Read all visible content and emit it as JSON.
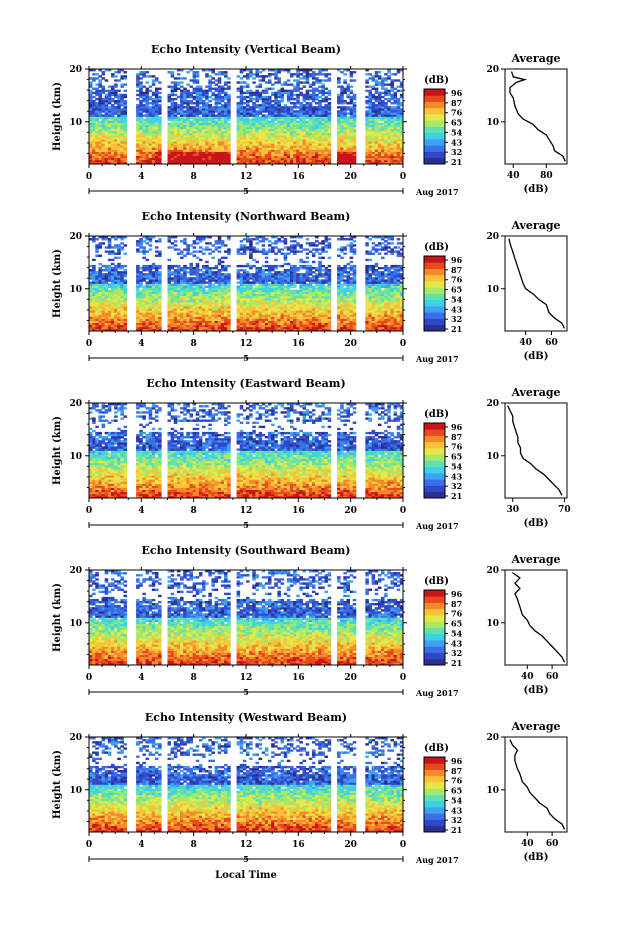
{
  "colors": {
    "colormap": [
      "#2b2f8f",
      "#3048c8",
      "#3a6fe8",
      "#3ea2f2",
      "#3dd0e6",
      "#5fe2b0",
      "#a8e868",
      "#e6e84a",
      "#f6c23a",
      "#f58a2a",
      "#e84a1e",
      "#c8141a"
    ],
    "axis": "#000000",
    "profile_line": "#000000"
  },
  "footer": {
    "xlabel": "Local Time"
  },
  "chart_data": [
    {
      "type": "heatmap",
      "title": "Echo Intensity (Vertical Beam)",
      "ylabel": "Height (km)",
      "xticks": [
        "0",
        "4",
        "8",
        "12",
        "16",
        "20",
        "0"
      ],
      "xlim": [
        0,
        24
      ],
      "ylim": [
        2,
        20
      ],
      "yticks": [
        "10",
        "20"
      ],
      "date_marker": "5",
      "date_label": "Aug 2017",
      "gaps": [
        [
          3.0,
          3.6
        ],
        [
          5.5,
          6.0
        ],
        [
          10.9,
          11.3
        ],
        [
          18.6,
          18.9
        ],
        [
          20.3,
          21.1
        ]
      ],
      "colorbar": {
        "unit": "(dB)",
        "ticks": [
          "96",
          "87",
          "76",
          "65",
          "54",
          "43",
          "32",
          "21"
        ]
      },
      "profile": {
        "title": "Average",
        "xlabel": "(dB)",
        "xticks": [
          "40",
          "80"
        ],
        "xlim": [
          30,
          105
        ],
        "points": [
          [
            103,
            2.5
          ],
          [
            100,
            3.5
          ],
          [
            90,
            4.5
          ],
          [
            88,
            5.5
          ],
          [
            84,
            6.5
          ],
          [
            80,
            7.5
          ],
          [
            70,
            8.5
          ],
          [
            64,
            9.5
          ],
          [
            52,
            10.5
          ],
          [
            46,
            11.5
          ],
          [
            42,
            13
          ],
          [
            40,
            14.5
          ],
          [
            36,
            15.5
          ],
          [
            36,
            16.5
          ],
          [
            44,
            17.5
          ],
          [
            54,
            18
          ],
          [
            40,
            18.5
          ],
          [
            38,
            19.5
          ]
        ]
      }
    },
    {
      "type": "heatmap",
      "title": "Echo Intensity (Northward Beam)",
      "ylabel": "Height (km)",
      "xticks": [
        "0",
        "4",
        "8",
        "12",
        "16",
        "20",
        "0"
      ],
      "xlim": [
        0,
        24
      ],
      "ylim": [
        2,
        20
      ],
      "yticks": [
        "10",
        "20"
      ],
      "date_marker": "5",
      "date_label": "Aug 2017",
      "gaps": [
        [
          3.0,
          3.6
        ],
        [
          5.5,
          6.0
        ],
        [
          10.9,
          11.3
        ],
        [
          18.6,
          18.9
        ],
        [
          20.3,
          21.1
        ]
      ],
      "colorbar": {
        "unit": "(dB)",
        "ticks": [
          "96",
          "87",
          "76",
          "65",
          "54",
          "43",
          "32",
          "21"
        ]
      },
      "profile": {
        "title": "Average",
        "xlabel": "(dB)",
        "xticks": [
          "40",
          "60"
        ],
        "xlim": [
          24,
          72
        ],
        "points": [
          [
            70,
            2.5
          ],
          [
            68,
            3.5
          ],
          [
            62,
            4.5
          ],
          [
            58,
            5.5
          ],
          [
            56,
            7
          ],
          [
            50,
            8
          ],
          [
            46,
            9
          ],
          [
            40,
            10
          ],
          [
            38,
            11
          ],
          [
            36,
            12.5
          ],
          [
            34,
            14
          ],
          [
            32,
            15.5
          ],
          [
            30,
            17
          ],
          [
            28,
            18.5
          ],
          [
            27,
            19.5
          ]
        ]
      }
    },
    {
      "type": "heatmap",
      "title": "Echo Intensity (Eastward Beam)",
      "ylabel": "Height (km)",
      "xticks": [
        "0",
        "4",
        "8",
        "12",
        "16",
        "20",
        "0"
      ],
      "xlim": [
        0,
        24
      ],
      "ylim": [
        2,
        20
      ],
      "yticks": [
        "10",
        "20"
      ],
      "date_marker": "5",
      "date_label": "Aug 2017",
      "gaps": [
        [
          3.0,
          3.6
        ],
        [
          5.5,
          6.0
        ],
        [
          10.9,
          11.3
        ],
        [
          18.6,
          18.9
        ],
        [
          20.3,
          21.1
        ]
      ],
      "colorbar": {
        "unit": "(dB)",
        "ticks": [
          "96",
          "87",
          "76",
          "65",
          "54",
          "43",
          "32",
          "21"
        ]
      },
      "profile": {
        "title": "Average",
        "xlabel": "(dB)",
        "xticks": [
          "30",
          "70"
        ],
        "xlim": [
          24,
          72
        ],
        "points": [
          [
            68,
            2.5
          ],
          [
            66,
            3.5
          ],
          [
            62,
            4.5
          ],
          [
            58,
            5.5
          ],
          [
            54,
            6.5
          ],
          [
            48,
            7.5
          ],
          [
            44,
            8.5
          ],
          [
            38,
            9.5
          ],
          [
            36,
            10.5
          ],
          [
            36,
            11.5
          ],
          [
            34,
            12.5
          ],
          [
            34,
            13.5
          ],
          [
            32,
            15
          ],
          [
            30,
            16.5
          ],
          [
            30,
            17.5
          ],
          [
            28,
            18.5
          ],
          [
            26,
            19.5
          ]
        ]
      }
    },
    {
      "type": "heatmap",
      "title": "Echo Intensity (Southward Beam)",
      "ylabel": "Height (km)",
      "xticks": [
        "0",
        "4",
        "8",
        "12",
        "16",
        "20",
        "0"
      ],
      "xlim": [
        0,
        24
      ],
      "ylim": [
        2,
        20
      ],
      "yticks": [
        "10",
        "20"
      ],
      "date_marker": "5",
      "date_label": "Aug 2017",
      "gaps": [
        [
          3.0,
          3.6
        ],
        [
          5.5,
          6.0
        ],
        [
          10.9,
          11.3
        ],
        [
          18.6,
          18.9
        ],
        [
          20.3,
          21.1
        ]
      ],
      "colorbar": {
        "unit": "(dB)",
        "ticks": [
          "96",
          "87",
          "76",
          "65",
          "54",
          "43",
          "32",
          "21"
        ]
      },
      "profile": {
        "title": "Average",
        "xlabel": "(dB)",
        "xticks": [
          "40",
          "60"
        ],
        "xlim": [
          22,
          72
        ],
        "points": [
          [
            70,
            2.5
          ],
          [
            68,
            3.5
          ],
          [
            64,
            4.5
          ],
          [
            60,
            5.5
          ],
          [
            56,
            6.5
          ],
          [
            52,
            7.5
          ],
          [
            46,
            8.5
          ],
          [
            42,
            9.5
          ],
          [
            40,
            10.5
          ],
          [
            36,
            11.5
          ],
          [
            34,
            13
          ],
          [
            32,
            14.5
          ],
          [
            30,
            15.5
          ],
          [
            34,
            16.5
          ],
          [
            30,
            17.5
          ],
          [
            34,
            18.5
          ],
          [
            28,
            19.5
          ]
        ]
      }
    },
    {
      "type": "heatmap",
      "title": "Echo Intensity (Westward Beam)",
      "ylabel": "Height (km)",
      "xticks": [
        "0",
        "4",
        "8",
        "12",
        "16",
        "20",
        "0"
      ],
      "xlim": [
        0,
        24
      ],
      "ylim": [
        2,
        20
      ],
      "yticks": [
        "10",
        "20"
      ],
      "date_marker": "5",
      "date_label": "Aug 2017",
      "gaps": [
        [
          3.0,
          3.6
        ],
        [
          5.5,
          6.0
        ],
        [
          10.9,
          11.3
        ],
        [
          18.6,
          18.9
        ],
        [
          20.3,
          21.1
        ]
      ],
      "colorbar": {
        "unit": "(dB)",
        "ticks": [
          "96",
          "87",
          "76",
          "65",
          "54",
          "43",
          "32",
          "21"
        ]
      },
      "profile": {
        "title": "Average",
        "xlabel": "(dB)",
        "xticks": [
          "40",
          "60"
        ],
        "xlim": [
          22,
          72
        ],
        "points": [
          [
            70,
            2.5
          ],
          [
            68,
            3.5
          ],
          [
            62,
            4.5
          ],
          [
            58,
            5.5
          ],
          [
            56,
            6.5
          ],
          [
            50,
            7.5
          ],
          [
            46,
            8.5
          ],
          [
            42,
            9.5
          ],
          [
            40,
            10.5
          ],
          [
            36,
            11.5
          ],
          [
            34,
            13
          ],
          [
            32,
            14
          ],
          [
            30,
            15.5
          ],
          [
            30,
            16.5
          ],
          [
            32,
            17.5
          ],
          [
            28,
            18.5
          ],
          [
            26,
            19.5
          ]
        ]
      }
    }
  ]
}
